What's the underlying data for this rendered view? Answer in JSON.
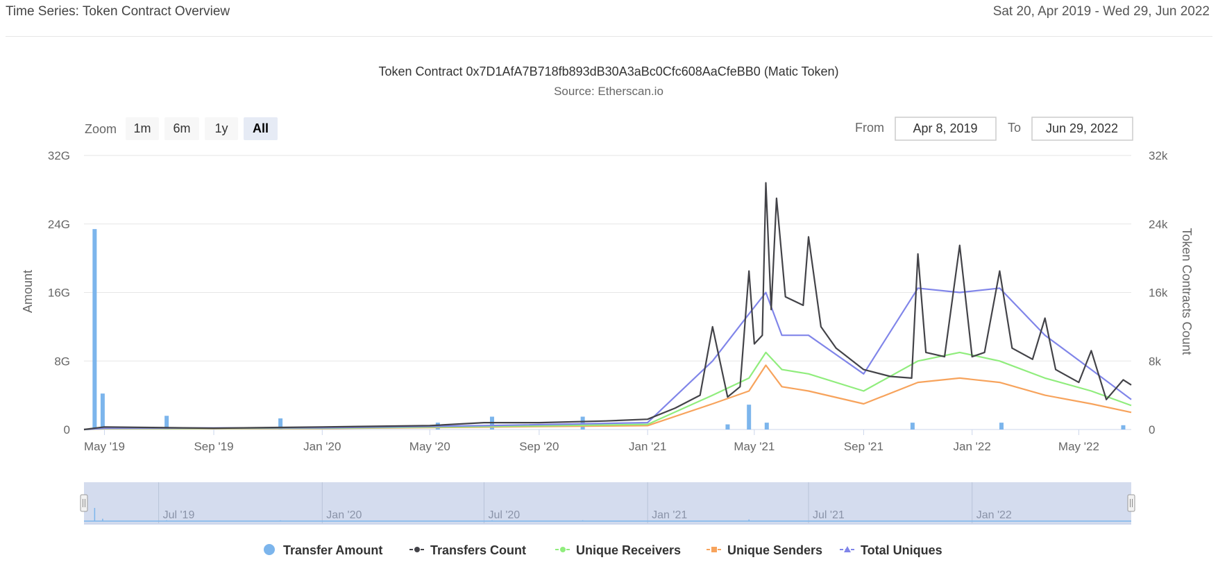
{
  "page": {
    "title": "Time Series: Token Contract Overview",
    "date_range": "Sat 20, Apr 2019 - Wed 29, Jun 2022"
  },
  "colors": {
    "transfer_amount": "#7cb5ec",
    "transfers_count": "#434348",
    "unique_receivers": "#90ed7d",
    "unique_senders": "#f7a35c",
    "total_uniques": "#8085e9",
    "navigator_bg": "#ccd6eb"
  },
  "range_selector": {
    "zoom_label": "Zoom",
    "buttons": [
      "1m",
      "6m",
      "1y",
      "All"
    ],
    "selected": "All",
    "from_label": "From",
    "from_value": "Apr 8, 2019",
    "to_label": "To",
    "to_value": "Jun 29, 2022"
  },
  "chart_data": {
    "type": "line",
    "title": "Token Contract 0x7D1AfA7B718fb893dB30A3aBc0Cfc608AaCfeBB0 (Matic Token)",
    "subtitle": "Source: Etherscan.io",
    "x_range": [
      "2019-04-08",
      "2022-06-29"
    ],
    "x_ticks": [
      "May '19",
      "Sep '19",
      "Jan '20",
      "May '20",
      "Sep '20",
      "Jan '21",
      "May '21",
      "Sep '21",
      "Jan '22",
      "May '22"
    ],
    "y_left": {
      "label": "Amount",
      "range": [
        0,
        32
      ],
      "ticks": [
        "0",
        "8G",
        "16G",
        "24G",
        "32G"
      ]
    },
    "y_right": {
      "label": "Token Contracts Count",
      "range": [
        0,
        32000
      ],
      "ticks": [
        "0",
        "8k",
        "16k",
        "24k",
        "32k"
      ]
    },
    "grid": true,
    "legend_position": "bottom",
    "navigator_ticks": [
      "Jul '19",
      "Jan '20",
      "Jul '20",
      "Jan '21",
      "Jul '21",
      "Jan '22"
    ],
    "series": [
      {
        "name": "Transfer Amount",
        "type": "column",
        "axis": "left",
        "unit": "G",
        "points": [
          [
            "2019-04-20",
            23.4
          ],
          [
            "2019-04-29",
            4.2
          ],
          [
            "2019-07-10",
            1.6
          ],
          [
            "2019-11-15",
            1.3
          ],
          [
            "2020-05-10",
            0.8
          ],
          [
            "2020-07-10",
            1.5
          ],
          [
            "2020-10-20",
            1.5
          ],
          [
            "2021-04-01",
            0.6
          ],
          [
            "2021-04-25",
            2.9
          ],
          [
            "2021-05-15",
            0.8
          ],
          [
            "2021-10-26",
            0.8
          ],
          [
            "2022-02-03",
            0.8
          ],
          [
            "2022-06-20",
            0.5
          ]
        ]
      },
      {
        "name": "Transfers Count",
        "type": "line",
        "axis": "right",
        "points": [
          [
            "2019-04-08",
            0
          ],
          [
            "2019-05-01",
            300
          ],
          [
            "2019-09-01",
            150
          ],
          [
            "2020-01-01",
            300
          ],
          [
            "2020-05-01",
            450
          ],
          [
            "2020-07-01",
            800
          ],
          [
            "2020-09-01",
            800
          ],
          [
            "2020-11-15",
            1000
          ],
          [
            "2021-01-01",
            1200
          ],
          [
            "2021-02-01",
            2500
          ],
          [
            "2021-03-01",
            4000
          ],
          [
            "2021-03-15",
            12000
          ],
          [
            "2021-04-01",
            3800
          ],
          [
            "2021-04-15",
            5000
          ],
          [
            "2021-04-25",
            18500
          ],
          [
            "2021-05-01",
            10000
          ],
          [
            "2021-05-10",
            11000
          ],
          [
            "2021-05-14",
            28800
          ],
          [
            "2021-05-20",
            14000
          ],
          [
            "2021-05-26",
            27000
          ],
          [
            "2021-06-05",
            15500
          ],
          [
            "2021-06-25",
            14500
          ],
          [
            "2021-07-01",
            22500
          ],
          [
            "2021-07-15",
            12000
          ],
          [
            "2021-08-01",
            9500
          ],
          [
            "2021-09-01",
            7000
          ],
          [
            "2021-10-01",
            6200
          ],
          [
            "2021-10-25",
            6000
          ],
          [
            "2021-11-01",
            20500
          ],
          [
            "2021-11-10",
            9000
          ],
          [
            "2021-12-01",
            8500
          ],
          [
            "2021-12-18",
            21500
          ],
          [
            "2022-01-01",
            8500
          ],
          [
            "2022-01-15",
            9000
          ],
          [
            "2022-02-01",
            18500
          ],
          [
            "2022-02-15",
            9500
          ],
          [
            "2022-03-10",
            8200
          ],
          [
            "2022-03-24",
            13000
          ],
          [
            "2022-04-05",
            7000
          ],
          [
            "2022-05-01",
            5500
          ],
          [
            "2022-05-15",
            9200
          ],
          [
            "2022-06-01",
            3500
          ],
          [
            "2022-06-20",
            5800
          ],
          [
            "2022-06-29",
            5200
          ]
        ]
      },
      {
        "name": "Unique Receivers",
        "type": "line",
        "axis": "right",
        "points": [
          [
            "2019-04-08",
            0
          ],
          [
            "2019-05-01",
            120
          ],
          [
            "2020-01-01",
            150
          ],
          [
            "2020-07-01",
            350
          ],
          [
            "2021-01-01",
            600
          ],
          [
            "2021-03-15",
            4000
          ],
          [
            "2021-04-25",
            6000
          ],
          [
            "2021-05-14",
            9000
          ],
          [
            "2021-06-01",
            7000
          ],
          [
            "2021-07-01",
            6500
          ],
          [
            "2021-09-01",
            4500
          ],
          [
            "2021-11-01",
            8000
          ],
          [
            "2021-12-18",
            9000
          ],
          [
            "2022-02-01",
            8000
          ],
          [
            "2022-03-24",
            6000
          ],
          [
            "2022-05-15",
            4500
          ],
          [
            "2022-06-29",
            2800
          ]
        ]
      },
      {
        "name": "Unique Senders",
        "type": "line",
        "axis": "right",
        "points": [
          [
            "2019-04-08",
            0
          ],
          [
            "2019-05-01",
            90
          ],
          [
            "2020-01-01",
            110
          ],
          [
            "2020-07-01",
            280
          ],
          [
            "2021-01-01",
            450
          ],
          [
            "2021-03-15",
            3000
          ],
          [
            "2021-04-25",
            4500
          ],
          [
            "2021-05-14",
            7500
          ],
          [
            "2021-06-01",
            5000
          ],
          [
            "2021-07-01",
            4500
          ],
          [
            "2021-09-01",
            3000
          ],
          [
            "2021-11-01",
            5500
          ],
          [
            "2021-12-18",
            6000
          ],
          [
            "2022-02-01",
            5500
          ],
          [
            "2022-03-24",
            4000
          ],
          [
            "2022-05-15",
            3000
          ],
          [
            "2022-06-29",
            2000
          ]
        ]
      },
      {
        "name": "Total Uniques",
        "type": "line",
        "axis": "right",
        "points": [
          [
            "2019-04-08",
            0
          ],
          [
            "2019-05-01",
            150
          ],
          [
            "2020-01-01",
            200
          ],
          [
            "2020-07-01",
            450
          ],
          [
            "2021-01-01",
            800
          ],
          [
            "2021-03-15",
            8000
          ],
          [
            "2021-04-25",
            13500
          ],
          [
            "2021-05-14",
            16000
          ],
          [
            "2021-06-01",
            11000
          ],
          [
            "2021-07-01",
            11000
          ],
          [
            "2021-09-01",
            6500
          ],
          [
            "2021-11-01",
            16500
          ],
          [
            "2021-12-18",
            16000
          ],
          [
            "2022-02-01",
            16500
          ],
          [
            "2022-03-24",
            11000
          ],
          [
            "2022-05-15",
            7000
          ],
          [
            "2022-06-29",
            3500
          ]
        ]
      }
    ]
  }
}
